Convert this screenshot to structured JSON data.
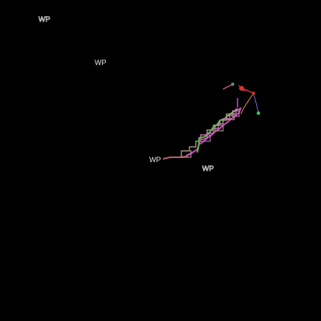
{
  "waypoint_labels": {
    "top_left": "WP",
    "upper": "WP",
    "middle": "WP",
    "lower_right": "WP"
  },
  "colors": {
    "background": "#000000",
    "label": "#e8e8e8",
    "track_green": "#5fb04a",
    "track_magenta": "#c04ab8",
    "track_rose": "#b85a6e",
    "track_tan": "#b8a88a",
    "track_pink": "#d878c8",
    "marker_red": "#e03030",
    "marker_green": "#40c060",
    "marker_teal": "#40a0a0",
    "line_purple": "#8060c0",
    "line_orange": "#d89040"
  }
}
